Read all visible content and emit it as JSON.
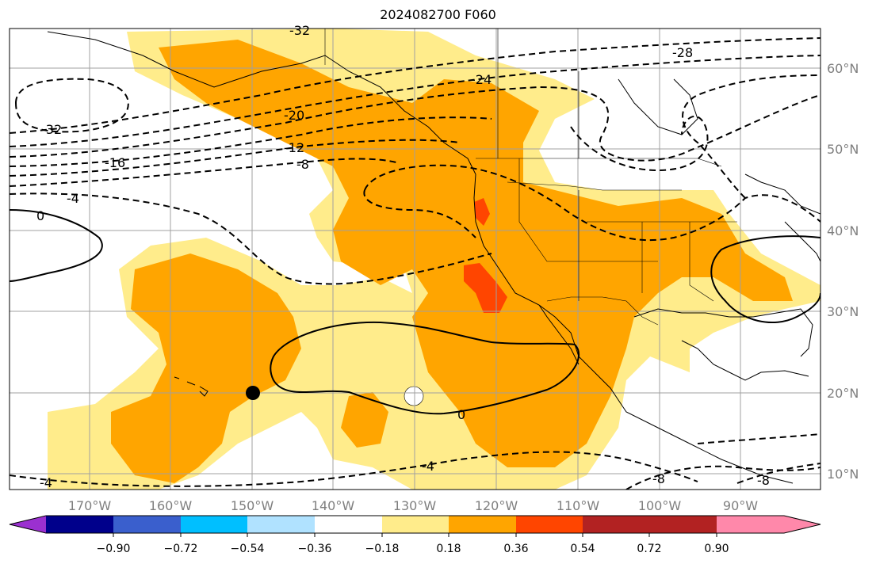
{
  "title": "2024082700 F060",
  "map": {
    "lon_labels": [
      "170°W",
      "160°W",
      "150°W",
      "140°W",
      "130°W",
      "120°W",
      "110°W",
      "100°W",
      "90°W"
    ],
    "lat_labels": [
      "60°N",
      "50°N",
      "40°N",
      "30°N",
      "20°N",
      "10°N"
    ],
    "contour_labels": [
      "-32",
      "-28",
      "-24",
      "-20",
      "-32",
      "-16",
      "-12",
      "-8",
      "-4",
      "0",
      "0",
      "-4",
      "-4",
      "-8",
      "-8"
    ],
    "marker": "black-dot"
  },
  "colorbar": {
    "ticks": [
      "−0.90",
      "−0.72",
      "−0.54",
      "−0.36",
      "−0.18",
      "0.18",
      "0.36",
      "0.54",
      "0.72",
      "0.90"
    ],
    "colors": [
      "#9b30d0",
      "#00008b",
      "#3a5fcd",
      "#00bfff",
      "#b0e2ff",
      "#ffffff",
      "#ffec8b",
      "#ffa500",
      "#ff4500",
      "#b22222",
      "#ff88aa"
    ]
  }
}
